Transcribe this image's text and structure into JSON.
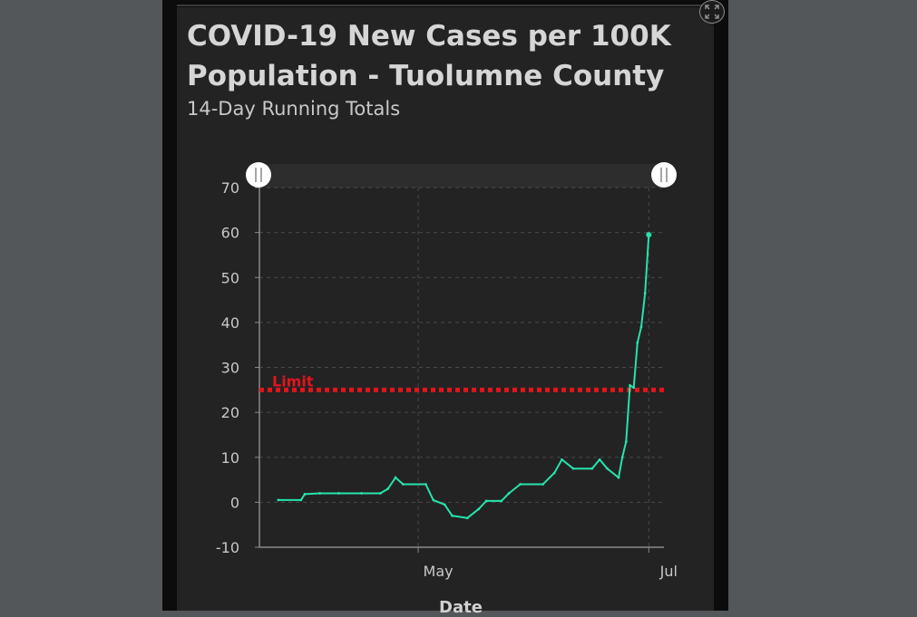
{
  "title": "COVID-19 New Cases per 100K Population - Tuolumne County",
  "subtitle": "14-Day Running Totals",
  "colors": {
    "line": "#27e3ad",
    "limit": "#e3141b",
    "background": "#232323",
    "grid": "#4a4a4a",
    "text": "#c8c8c8"
  },
  "expand_button_icon": "expand-icon",
  "chart_data": {
    "type": "line",
    "title": "COVID-19 New Cases per 100K Population - Tuolumne County",
    "subtitle": "14-Day Running Totals",
    "xlabel": "Date",
    "ylabel": "",
    "ylim": [
      -10,
      70
    ],
    "yticks": [
      70,
      60,
      50,
      40,
      30,
      20,
      10,
      0,
      -10
    ],
    "xlim": [
      "2020-03-20",
      "2020-07-05"
    ],
    "xticks": [
      {
        "label": "May",
        "date": "2020-05-01"
      },
      {
        "label": "Jul",
        "date": "2020-07-01"
      }
    ],
    "grid": true,
    "limit_line": {
      "label": "Limit",
      "value": 25
    },
    "series": [
      {
        "points": [
          {
            "x": "2020-03-25",
            "y": 0.5
          },
          {
            "x": "2020-03-31",
            "y": 0.5
          },
          {
            "x": "2020-04-01",
            "y": 1.8
          },
          {
            "x": "2020-04-05",
            "y": 2.0
          },
          {
            "x": "2020-04-10",
            "y": 2.0
          },
          {
            "x": "2020-04-16",
            "y": 2.0
          },
          {
            "x": "2020-04-21",
            "y": 2.0
          },
          {
            "x": "2020-04-23",
            "y": 3.0
          },
          {
            "x": "2020-04-25",
            "y": 5.5
          },
          {
            "x": "2020-04-27",
            "y": 4.0
          },
          {
            "x": "2020-05-03",
            "y": 4.0
          },
          {
            "x": "2020-05-05",
            "y": 0.5
          },
          {
            "x": "2020-05-08",
            "y": -0.5
          },
          {
            "x": "2020-05-10",
            "y": -3.0
          },
          {
            "x": "2020-05-14",
            "y": -3.5
          },
          {
            "x": "2020-05-17",
            "y": -1.5
          },
          {
            "x": "2020-05-19",
            "y": 0.3
          },
          {
            "x": "2020-05-23",
            "y": 0.3
          },
          {
            "x": "2020-05-25",
            "y": 2.0
          },
          {
            "x": "2020-05-28",
            "y": 4.0
          },
          {
            "x": "2020-06-03",
            "y": 4.0
          },
          {
            "x": "2020-06-06",
            "y": 6.5
          },
          {
            "x": "2020-06-08",
            "y": 9.5
          },
          {
            "x": "2020-06-11",
            "y": 7.5
          },
          {
            "x": "2020-06-16",
            "y": 7.5
          },
          {
            "x": "2020-06-18",
            "y": 9.5
          },
          {
            "x": "2020-06-20",
            "y": 7.5
          },
          {
            "x": "2020-06-23",
            "y": 5.5
          },
          {
            "x": "2020-06-24",
            "y": 10.0
          },
          {
            "x": "2020-06-25",
            "y": 13.5
          },
          {
            "x": "2020-06-26",
            "y": 26.0
          },
          {
            "x": "2020-06-27",
            "y": 25.5
          },
          {
            "x": "2020-06-28",
            "y": 35.5
          },
          {
            "x": "2020-06-29",
            "y": 39.0
          },
          {
            "x": "2020-06-30",
            "y": 46.5
          },
          {
            "x": "2020-07-01",
            "y": 59.5
          }
        ]
      }
    ]
  }
}
